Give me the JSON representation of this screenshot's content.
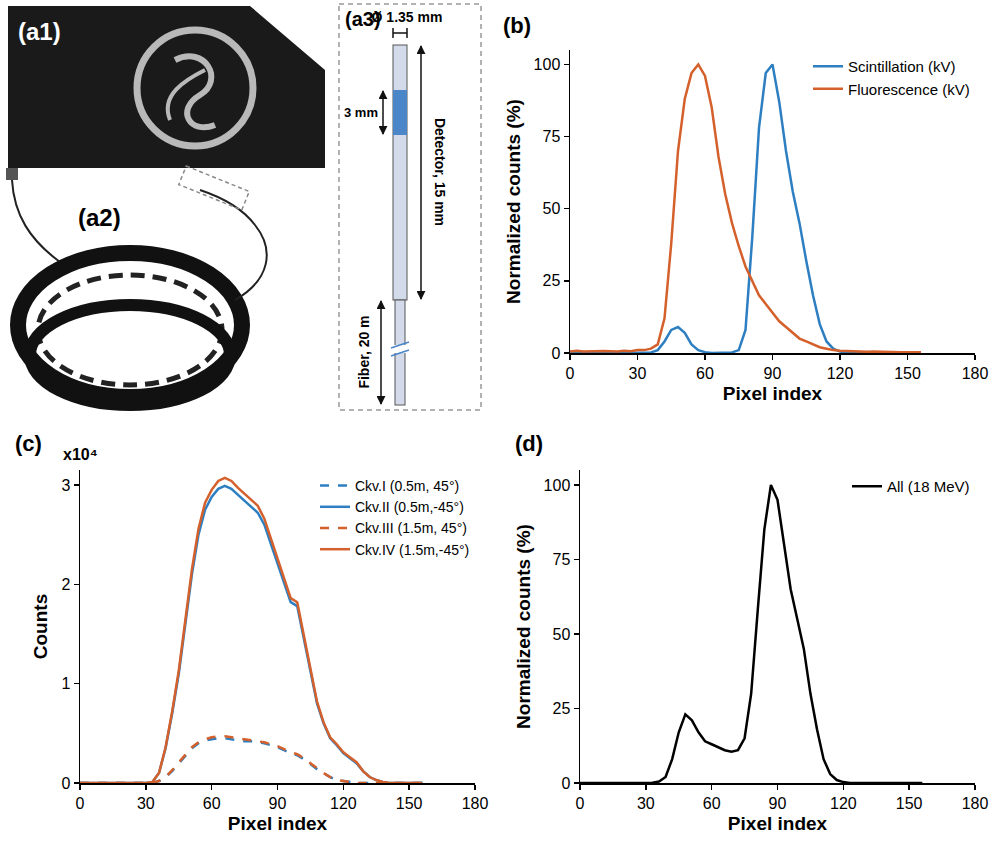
{
  "photo": {
    "labels": [
      "(a1)",
      "(a2)"
    ]
  },
  "diagram": {
    "label": "(a3)",
    "diameter": "Ø 1.35 mm",
    "active_length": "3 mm",
    "detector": "Detector, 15 mm",
    "fiber": "Fiber, 20 m"
  },
  "chart_data": [
    {
      "type": "line",
      "title": "(b)",
      "x_label": "Pixel index",
      "y_label": "Normalized counts (%)",
      "x": [
        0,
        3,
        6,
        9,
        12,
        15,
        18,
        21,
        24,
        27,
        30,
        33,
        36,
        39,
        42,
        45,
        48,
        51,
        54,
        57,
        60,
        63,
        66,
        69,
        72,
        75,
        78,
        81,
        84,
        87,
        90,
        93,
        96,
        99,
        102,
        105,
        108,
        111,
        114,
        117,
        120,
        123,
        126,
        129,
        132,
        135,
        138,
        141,
        144,
        147,
        150,
        153,
        156
      ],
      "series": [
        {
          "name": "Scintillation (kV)",
          "color": "#2e7fc2",
          "line_style": "solid",
          "values": [
            0,
            0,
            0,
            0,
            0,
            0,
            0,
            0,
            0,
            0,
            0,
            0,
            0.2,
            1,
            4,
            8,
            9,
            7,
            3,
            1,
            0.3,
            0,
            0,
            0,
            0.2,
            1,
            8,
            40,
            78,
            97,
            100,
            87,
            70,
            56,
            45,
            32,
            20,
            10,
            4,
            1.5,
            0.5,
            0.2,
            0,
            0,
            0,
            0,
            0,
            0,
            0,
            0,
            0,
            0,
            0
          ]
        },
        {
          "name": "Fluorescence (kV)",
          "color": "#d4602c",
          "line_style": "solid",
          "values": [
            0.5,
            0.8,
            0.5,
            0.6,
            0.5,
            0.7,
            0.6,
            0.5,
            0.8,
            0.6,
            1,
            1,
            1.5,
            3,
            12,
            38,
            70,
            88,
            97,
            100,
            96,
            85,
            68,
            55,
            45,
            37,
            30,
            25,
            20,
            17,
            14,
            11,
            9,
            7,
            5,
            4,
            3,
            2,
            1.5,
            1,
            0.8,
            0.7,
            0.5,
            0.6,
            0.4,
            0.5,
            0.4,
            0.3,
            0.4,
            0.3,
            0.3,
            0.2,
            0.3
          ]
        }
      ],
      "xlim": [
        0,
        180
      ],
      "xticks": [
        0,
        30,
        60,
        90,
        120,
        150,
        180
      ],
      "ylim": [
        0,
        105
      ],
      "yticks": [
        0,
        25,
        50,
        75,
        100
      ],
      "grid": false,
      "legend": "top right"
    },
    {
      "type": "line",
      "title": "(c)",
      "x_label": "Pixel index",
      "y_label": "Counts",
      "annotations": [
        "x10⁴"
      ],
      "x": [
        0,
        3,
        6,
        9,
        12,
        15,
        18,
        21,
        24,
        27,
        30,
        33,
        36,
        39,
        42,
        45,
        48,
        51,
        54,
        57,
        60,
        63,
        66,
        69,
        72,
        75,
        78,
        81,
        84,
        87,
        90,
        93,
        96,
        99,
        102,
        105,
        108,
        111,
        114,
        117,
        120,
        123,
        126,
        129,
        132,
        135,
        138,
        141,
        144,
        147,
        150,
        153,
        156
      ],
      "series": [
        {
          "name": "Ckv.I (0.5m, 45°)",
          "color": "#2e7fc2",
          "line_style": "dash",
          "values": [
            0,
            0,
            0,
            0,
            0,
            0,
            0,
            0,
            0,
            0,
            0,
            0,
            0.02,
            0.06,
            0.12,
            0.2,
            0.28,
            0.35,
            0.4,
            0.43,
            0.44,
            0.45,
            0.45,
            0.44,
            0.43,
            0.42,
            0.42,
            0.41,
            0.4,
            0.38,
            0.36,
            0.33,
            0.3,
            0.28,
            0.24,
            0.19,
            0.14,
            0.1,
            0.06,
            0.03,
            0.02,
            0.01,
            0,
            0,
            0,
            0,
            0,
            0,
            0,
            0,
            0,
            0,
            0
          ]
        },
        {
          "name": "Ckv.II (0.5m,-45°)",
          "color": "#2e7fc2",
          "line_style": "solid",
          "values": [
            0,
            0,
            0,
            0,
            0,
            0,
            0,
            0,
            0,
            0,
            0,
            0.01,
            0.1,
            0.35,
            0.7,
            1.1,
            1.6,
            2.1,
            2.5,
            2.75,
            2.88,
            2.96,
            2.99,
            2.96,
            2.9,
            2.84,
            2.78,
            2.72,
            2.6,
            2.4,
            2.2,
            2.0,
            1.82,
            1.78,
            1.45,
            1.1,
            0.8,
            0.6,
            0.45,
            0.38,
            0.3,
            0.25,
            0.2,
            0.12,
            0.06,
            0.03,
            0.01,
            0,
            0,
            0,
            0,
            0,
            0
          ]
        },
        {
          "name": "Ckv.III (1.5m, 45°)",
          "color": "#d4602c",
          "line_style": "dash",
          "values": [
            0,
            0,
            0,
            0,
            0,
            0,
            0,
            0,
            0,
            0,
            0,
            0,
            0.02,
            0.06,
            0.13,
            0.21,
            0.29,
            0.36,
            0.41,
            0.44,
            0.46,
            0.47,
            0.47,
            0.46,
            0.45,
            0.44,
            0.43,
            0.42,
            0.41,
            0.39,
            0.37,
            0.34,
            0.31,
            0.29,
            0.25,
            0.2,
            0.15,
            0.1,
            0.06,
            0.03,
            0.02,
            0.01,
            0,
            0,
            0,
            0,
            0,
            0,
            0,
            0,
            0,
            0,
            0
          ]
        },
        {
          "name": "Ckv.IV (1.5m,-45°)",
          "color": "#d4602c",
          "line_style": "solid",
          "values": [
            0,
            0,
            0,
            0,
            0,
            0,
            0,
            0,
            0,
            0,
            0,
            0.01,
            0.1,
            0.36,
            0.72,
            1.13,
            1.64,
            2.15,
            2.56,
            2.82,
            2.95,
            3.04,
            3.07,
            3.04,
            2.97,
            2.91,
            2.85,
            2.79,
            2.66,
            2.46,
            2.25,
            2.05,
            1.86,
            1.82,
            1.49,
            1.13,
            0.82,
            0.61,
            0.46,
            0.39,
            0.31,
            0.26,
            0.21,
            0.12,
            0.06,
            0.03,
            0.01,
            0,
            0,
            0,
            0,
            0,
            0
          ]
        }
      ],
      "xlim": [
        0,
        180
      ],
      "xticks": [
        0,
        30,
        60,
        90,
        120,
        150,
        180
      ],
      "ylim": [
        0,
        3.15
      ],
      "yticks": [
        0,
        1,
        2,
        3
      ],
      "grid": false,
      "legend": "top right"
    },
    {
      "type": "line",
      "title": "(d)",
      "x_label": "Pixel index",
      "y_label": "Normalized counts (%)",
      "x": [
        0,
        3,
        6,
        9,
        12,
        15,
        18,
        21,
        24,
        27,
        30,
        33,
        36,
        39,
        42,
        45,
        48,
        51,
        54,
        57,
        60,
        63,
        66,
        69,
        72,
        75,
        78,
        81,
        84,
        87,
        90,
        93,
        96,
        99,
        102,
        105,
        108,
        111,
        114,
        117,
        120,
        123,
        126,
        129,
        132,
        135,
        138,
        141,
        144,
        147,
        150,
        153,
        156
      ],
      "series": [
        {
          "name": "All (18 MeV)",
          "color": "#000000",
          "line_style": "solid",
          "values": [
            0,
            0,
            0,
            0,
            0,
            0,
            0,
            0,
            0,
            0,
            0,
            0.1,
            0.5,
            2,
            8,
            17,
            23,
            21,
            17,
            14,
            13,
            12,
            11,
            10.5,
            11,
            15,
            30,
            58,
            85,
            100,
            95,
            80,
            65,
            55,
            45,
            30,
            18,
            8,
            3,
            1,
            0.3,
            0,
            0,
            0,
            0,
            0,
            0,
            0,
            0,
            0,
            0,
            0,
            0
          ]
        }
      ],
      "xlim": [
        0,
        180
      ],
      "xticks": [
        0,
        30,
        60,
        90,
        120,
        150,
        180
      ],
      "ylim": [
        0,
        105
      ],
      "yticks": [
        0,
        25,
        50,
        75,
        100
      ],
      "grid": false,
      "legend": "top right"
    }
  ]
}
